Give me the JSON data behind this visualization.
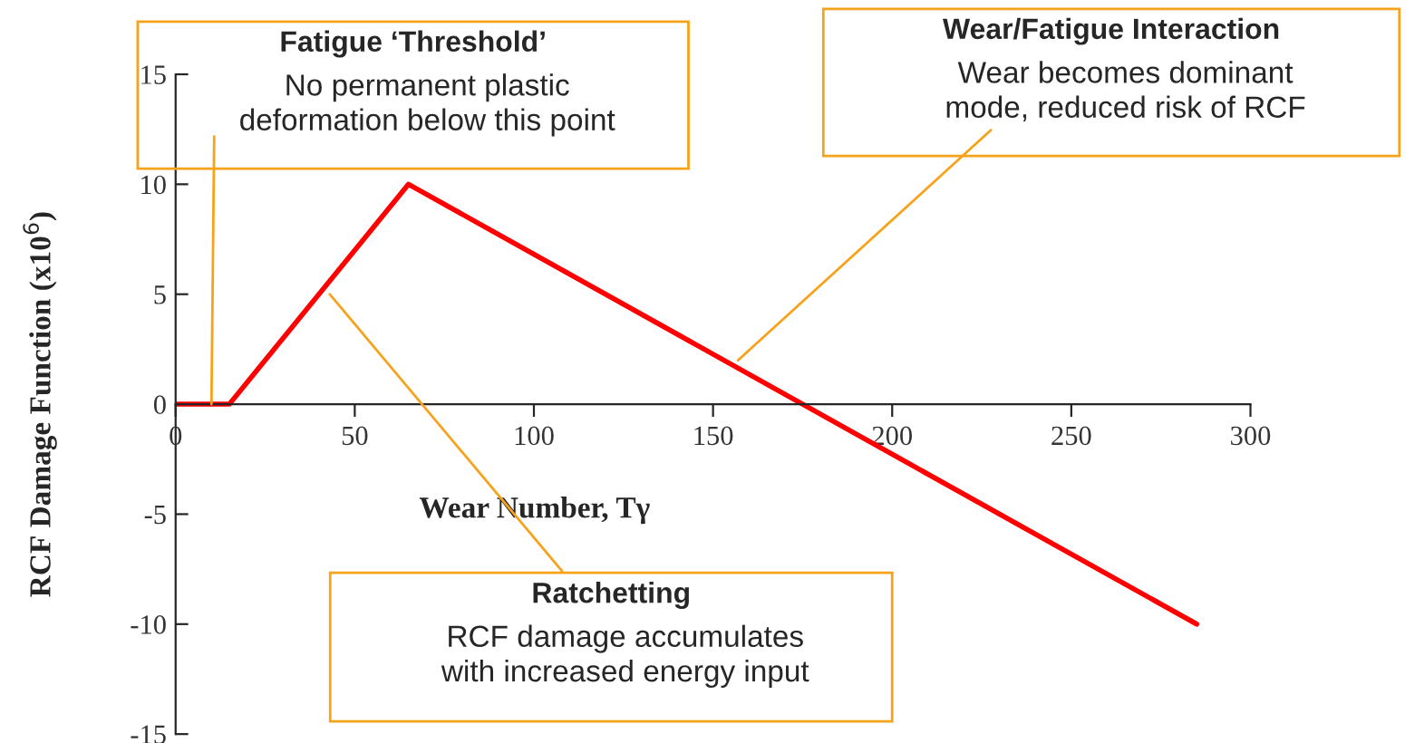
{
  "chart_data": {
    "type": "line",
    "xlabel": "Wear Number, Tγ",
    "ylabel": "RCF Damage Function (x10$^{6}$)",
    "x": [
      0,
      15,
      65,
      285
    ],
    "series": [
      {
        "color": "#ff0000",
        "values": [
          0,
          0,
          10,
          -10
        ]
      }
    ],
    "xlim": [
      0,
      300
    ],
    "xticks": [
      0,
      50,
      100,
      150,
      200,
      250,
      300
    ],
    "ylim": [
      -15,
      15
    ],
    "yticks": [
      -15,
      -10,
      -5,
      0,
      5,
      10,
      15
    ],
    "grid": false,
    "marker": "none",
    "line_style": "solid",
    "annotations": [
      {
        "text": "Fatigue ‘Threshold’\nNo permanent plastic\ndeformation below this point",
        "x": 10,
        "y": 0
      },
      {
        "text": "Wear/Fatigue Interaction\nWear becomes dominant\nmode, reduced risk of RCF",
        "x": 157,
        "y": 2
      },
      {
        "text": "Ratchetting\nRCF damage accumulates\nwith increased energy input",
        "x": 43,
        "y": 5
      }
    ]
  }
}
